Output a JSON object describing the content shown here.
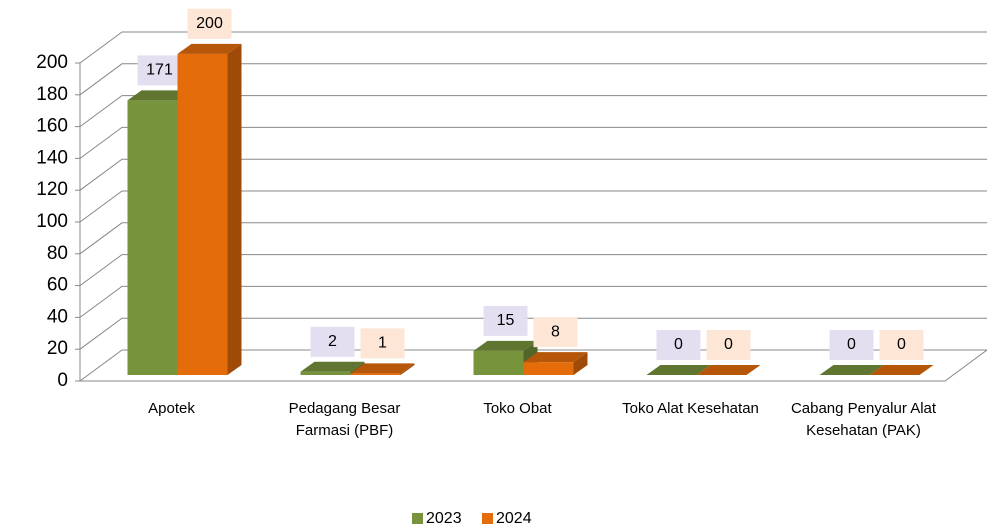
{
  "chart_data": {
    "type": "bar3d",
    "categories": [
      "Apotek",
      "Pedagang Besar Farmasi (PBF)",
      "Toko Obat",
      "Toko Alat Kesehatan",
      "Cabang Penyalur Alat Kesehatan (PAK)"
    ],
    "series": [
      {
        "name": "2023",
        "color": "#77933c",
        "values": [
          171,
          2,
          15,
          0,
          0
        ]
      },
      {
        "name": "2024",
        "color": "#e46c0a",
        "values": [
          200,
          1,
          8,
          0,
          0
        ]
      }
    ],
    "ylim": [
      0,
      200
    ],
    "yticks": [
      0,
      20,
      40,
      60,
      80,
      100,
      120,
      140,
      160,
      180,
      200
    ],
    "grid": true,
    "legend": "bottom"
  }
}
